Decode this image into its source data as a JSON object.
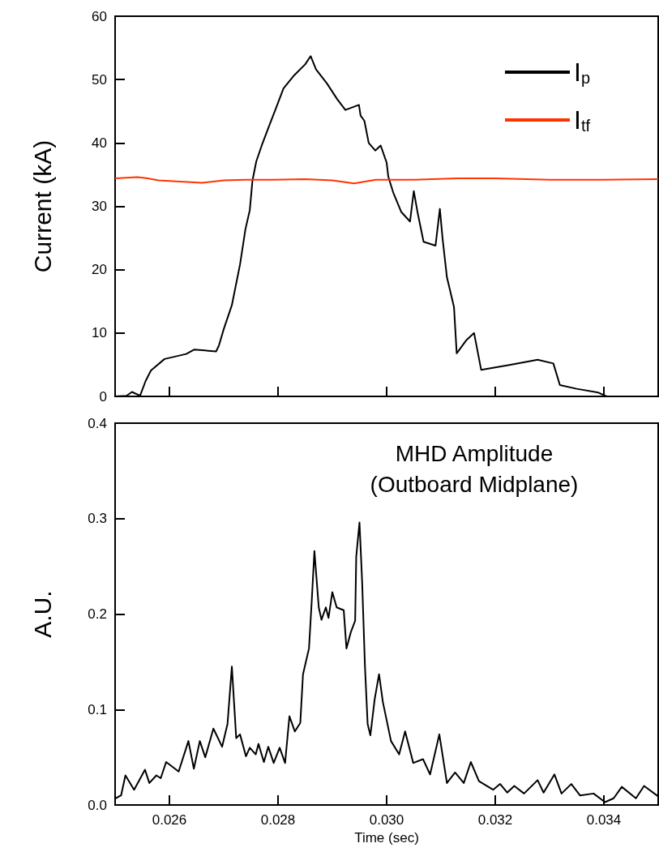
{
  "chart_data": [
    {
      "type": "line",
      "ylabel": "Current (kA)",
      "xlim": [
        0.025,
        0.035
      ],
      "xticks": [
        0.026,
        0.028,
        0.03,
        0.032,
        0.034
      ],
      "ylim": [
        0,
        60
      ],
      "yticks": [
        0,
        10,
        20,
        30,
        40,
        50,
        60
      ],
      "tick_labels": "y",
      "legend": "top right",
      "marker": "none",
      "series": [
        {
          "name": "I$_{p}$",
          "color": "#000000",
          "x": [
            0.025,
            0.02521,
            0.02531,
            0.02546,
            0.02556,
            0.02566,
            0.02591,
            0.02631,
            0.02646,
            0.02686,
            0.02691,
            0.027,
            0.02715,
            0.0273,
            0.0274,
            0.02748,
            0.02753,
            0.0276,
            0.0277,
            0.02785,
            0.02795,
            0.0281,
            0.0283,
            0.0285,
            0.0286,
            0.0287,
            0.0289,
            0.02909,
            0.02924,
            0.02949,
            0.02952,
            0.02959,
            0.02967,
            0.02979,
            0.02989,
            0.03,
            0.03003,
            0.03012,
            0.03027,
            0.03043,
            0.0305,
            0.03057,
            0.03068,
            0.0309,
            0.03098,
            0.03103,
            0.03111,
            0.03124,
            0.03129,
            0.03147,
            0.03161,
            0.03174,
            0.03228,
            0.03278,
            0.03307,
            0.03319,
            0.0335,
            0.0339,
            0.03405,
            0.035
          ],
          "values": [
            0,
            0.1,
            0.7,
            0.1,
            2.4,
            4.1,
            5.9,
            6.7,
            7.4,
            7.1,
            8,
            10.6,
            14.4,
            20.8,
            26.4,
            29.4,
            34.1,
            37.1,
            39.6,
            43,
            45.2,
            48.6,
            50.7,
            52.4,
            53.7,
            51.6,
            49.4,
            46.9,
            45.2,
            46,
            44.3,
            43.5,
            40,
            38.8,
            39.6,
            36.9,
            34.7,
            32.2,
            29.1,
            27.6,
            32.4,
            29,
            24.4,
            23.8,
            29.6,
            24.9,
            18.8,
            14.1,
            6.8,
            8.9,
            10,
            4.2,
            5,
            5.8,
            5.2,
            1.8,
            1.2,
            0.6,
            0,
            0
          ]
        },
        {
          "name": "I$_{tf}$",
          "color": "#ff3300",
          "x": [
            0.025,
            0.02541,
            0.0256,
            0.0258,
            0.0262,
            0.0266,
            0.027,
            0.0274,
            0.0279,
            0.0285,
            0.029,
            0.0294,
            0.0298,
            0.0305,
            0.0313,
            0.032,
            0.033,
            0.034,
            0.035
          ],
          "values": [
            34.4,
            34.6,
            34.4,
            34.1,
            33.9,
            33.7,
            34.1,
            34.2,
            34.2,
            34.3,
            34.1,
            33.6,
            34.2,
            34.2,
            34.4,
            34.4,
            34.2,
            34.2,
            34.3
          ]
        }
      ]
    },
    {
      "type": "line",
      "title": "MHD Amplitude\n(Outboard Midplane)",
      "xlabel": "Time (sec)",
      "ylabel": "A.U.",
      "xlim": [
        0.025,
        0.035
      ],
      "xticks": [
        0.026,
        0.028,
        {
          "value": 0.03,
          "label": "0.030"
        },
        0.032,
        0.034
      ],
      "ylim": [
        0,
        0.4
      ],
      "yticks": [
        {
          "value": 0,
          "label": "0.0"
        },
        0.1,
        0.2,
        0.3,
        0.4
      ],
      "marker": "none",
      "series": [
        {
          "color": "#000000",
          "x": [
            0.02501,
            0.02511,
            0.02519,
            0.02535,
            0.02555,
            0.02563,
            0.02576,
            0.02584,
            0.02594,
            0.02617,
            0.02635,
            0.02645,
            0.02656,
            0.02666,
            0.02681,
            0.02697,
            0.02707,
            0.02715,
            0.02723,
            0.0273,
            0.02741,
            0.02748,
            0.02759,
            0.02764,
            0.02774,
            0.02782,
            0.02792,
            0.02803,
            0.02813,
            0.02821,
            0.02831,
            0.02841,
            0.02846,
            0.02857,
            0.02862,
            0.02867,
            0.02875,
            0.0288,
            0.02888,
            0.02893,
            0.029,
            0.02908,
            0.02921,
            0.02926,
            0.02934,
            0.02942,
            0.02944,
            0.0295,
            0.02955,
            0.0296,
            0.02965,
            0.0297,
            0.02978,
            0.02986,
            0.02993,
            0.03008,
            0.03023,
            0.03034,
            0.03049,
            0.03067,
            0.0308,
            0.03097,
            0.03111,
            0.03126,
            0.03142,
            0.03155,
            0.0317,
            0.03196,
            0.03209,
            0.03222,
            0.03235,
            0.03253,
            0.03278,
            0.03289,
            0.03309,
            0.03322,
            0.0334,
            0.03356,
            0.03381,
            0.03402,
            0.03418,
            0.03433,
            0.03459,
            0.03474,
            0.035
          ],
          "values": [
            0.007,
            0.01,
            0.031,
            0.016,
            0.037,
            0.023,
            0.031,
            0.028,
            0.045,
            0.035,
            0.067,
            0.038,
            0.067,
            0.05,
            0.08,
            0.061,
            0.085,
            0.145,
            0.07,
            0.074,
            0.051,
            0.06,
            0.053,
            0.064,
            0.045,
            0.061,
            0.044,
            0.06,
            0.044,
            0.093,
            0.077,
            0.086,
            0.137,
            0.164,
            0.213,
            0.266,
            0.207,
            0.194,
            0.207,
            0.196,
            0.223,
            0.207,
            0.204,
            0.164,
            0.181,
            0.193,
            0.26,
            0.296,
            0.232,
            0.146,
            0.085,
            0.073,
            0.111,
            0.137,
            0.108,
            0.067,
            0.053,
            0.077,
            0.044,
            0.048,
            0.032,
            0.074,
            0.023,
            0.034,
            0.023,
            0.045,
            0.025,
            0.016,
            0.022,
            0.013,
            0.02,
            0.012,
            0.026,
            0.013,
            0.032,
            0.012,
            0.022,
            0.01,
            0.012,
            0.003,
            0.007,
            0.019,
            0.007,
            0.02,
            0.009
          ]
        }
      ]
    }
  ]
}
